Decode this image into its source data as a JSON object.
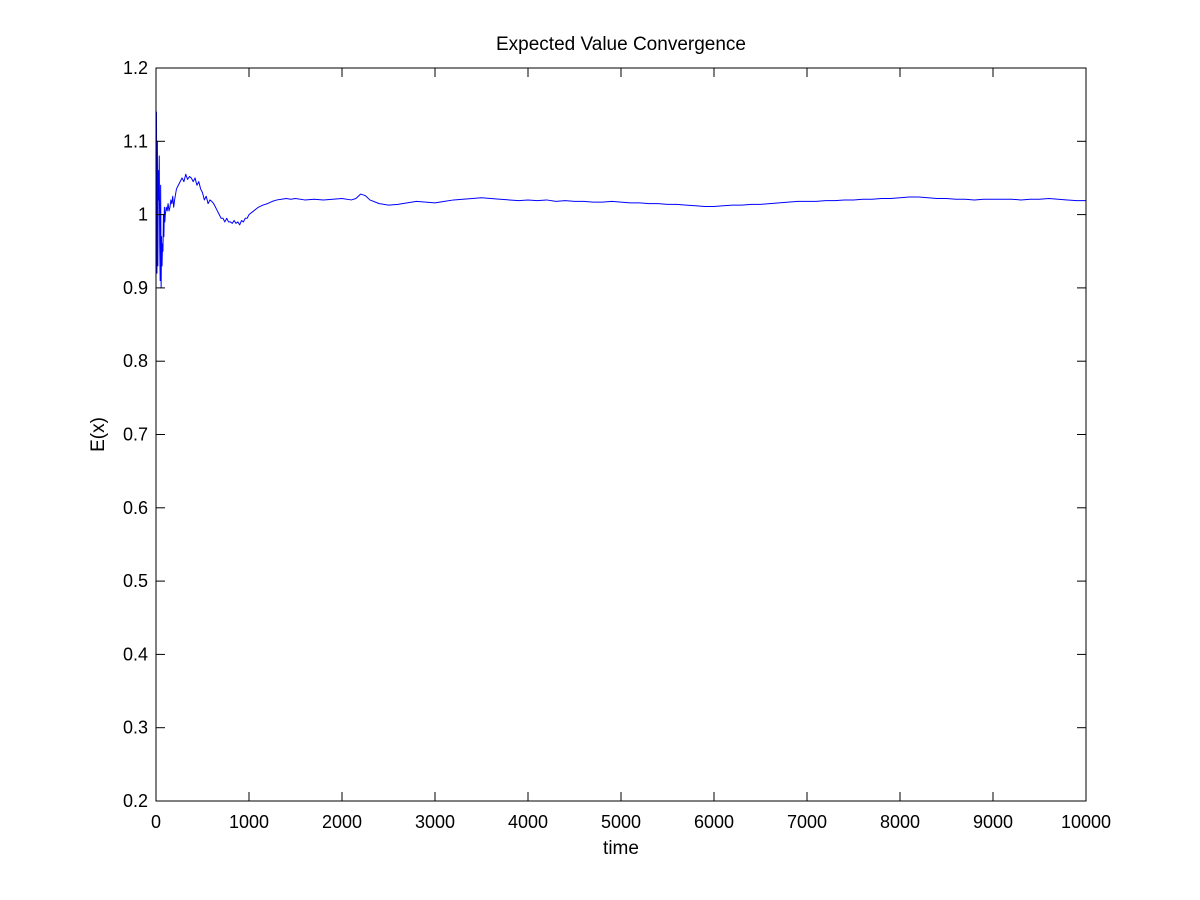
{
  "chart_data": {
    "type": "line",
    "title": "Expected Value Convergence",
    "xlabel": "time",
    "ylabel": "E(x)",
    "xlim": [
      0,
      10000
    ],
    "ylim": [
      0.2,
      1.2
    ],
    "x_ticks": [
      0,
      1000,
      2000,
      3000,
      4000,
      5000,
      6000,
      7000,
      8000,
      9000,
      10000
    ],
    "y_ticks": [
      0.2,
      0.3,
      0.4,
      0.5,
      0.6,
      0.7,
      0.8,
      0.9,
      1,
      1.1,
      1.2
    ],
    "x_tick_labels": [
      "0",
      "1000",
      "2000",
      "3000",
      "4000",
      "5000",
      "6000",
      "7000",
      "8000",
      "9000",
      "10000"
    ],
    "y_tick_labels": [
      "0.2",
      "0.3",
      "0.4",
      "0.5",
      "0.6",
      "0.7",
      "0.8",
      "0.9",
      "1",
      "1.1",
      "1.2"
    ],
    "grid": false,
    "series": [
      {
        "color": "#0000ff",
        "x": [
          1,
          5,
          10,
          15,
          20,
          25,
          30,
          35,
          40,
          45,
          50,
          55,
          60,
          65,
          70,
          75,
          80,
          85,
          90,
          95,
          100,
          110,
          120,
          130,
          140,
          150,
          160,
          170,
          180,
          190,
          200,
          220,
          240,
          260,
          280,
          300,
          320,
          340,
          360,
          380,
          400,
          420,
          440,
          460,
          480,
          500,
          520,
          540,
          560,
          580,
          600,
          620,
          640,
          660,
          680,
          700,
          720,
          740,
          760,
          780,
          800,
          820,
          840,
          860,
          880,
          900,
          920,
          940,
          960,
          980,
          1000,
          1050,
          1100,
          1150,
          1200,
          1250,
          1300,
          1350,
          1400,
          1450,
          1500,
          1600,
          1700,
          1800,
          1900,
          2000,
          2100,
          2150,
          2200,
          2250,
          2300,
          2400,
          2500,
          2600,
          2700,
          2800,
          2900,
          3000,
          3100,
          3200,
          3300,
          3400,
          3500,
          3600,
          3700,
          3800,
          3900,
          4000,
          4100,
          4200,
          4300,
          4400,
          4500,
          4600,
          4700,
          4800,
          4900,
          5000,
          5100,
          5200,
          5300,
          5400,
          5500,
          5600,
          5700,
          5800,
          5900,
          6000,
          6100,
          6200,
          6300,
          6400,
          6500,
          6600,
          6700,
          6800,
          6900,
          7000,
          7100,
          7200,
          7300,
          7400,
          7500,
          7600,
          7700,
          7800,
          7900,
          8000,
          8100,
          8200,
          8300,
          8400,
          8500,
          8600,
          8700,
          8800,
          8900,
          9000,
          9100,
          9200,
          9300,
          9400,
          9500,
          9600,
          9700,
          9800,
          9900,
          10000
        ],
        "y": [
          0.95,
          1.14,
          0.92,
          1.1,
          0.93,
          1.06,
          1.02,
          1.08,
          0.96,
          0.91,
          1.04,
          0.9,
          0.97,
          0.93,
          0.96,
          0.95,
          1.0,
          0.97,
          1.01,
          0.99,
          1.0,
          1.01,
          1.005,
          1.015,
          1.005,
          1.01,
          1.02,
          1.015,
          1.025,
          1.01,
          1.02,
          1.035,
          1.04,
          1.045,
          1.05,
          1.045,
          1.055,
          1.048,
          1.052,
          1.05,
          1.045,
          1.05,
          1.04,
          1.045,
          1.035,
          1.03,
          1.02,
          1.025,
          1.015,
          1.02,
          1.018,
          1.015,
          1.01,
          1.005,
          1.0,
          0.995,
          0.995,
          0.99,
          0.995,
          0.99,
          0.99,
          0.988,
          0.992,
          0.988,
          0.99,
          0.986,
          0.992,
          0.99,
          0.995,
          0.995,
          1.0,
          1.005,
          1.01,
          1.013,
          1.015,
          1.018,
          1.02,
          1.021,
          1.022,
          1.021,
          1.022,
          1.02,
          1.021,
          1.02,
          1.021,
          1.022,
          1.02,
          1.022,
          1.028,
          1.026,
          1.02,
          1.015,
          1.013,
          1.014,
          1.016,
          1.018,
          1.017,
          1.016,
          1.018,
          1.02,
          1.021,
          1.022,
          1.023,
          1.022,
          1.021,
          1.02,
          1.019,
          1.02,
          1.019,
          1.02,
          1.018,
          1.019,
          1.018,
          1.018,
          1.017,
          1.017,
          1.018,
          1.017,
          1.016,
          1.016,
          1.015,
          1.015,
          1.014,
          1.014,
          1.013,
          1.012,
          1.011,
          1.011,
          1.012,
          1.013,
          1.013,
          1.014,
          1.014,
          1.015,
          1.016,
          1.017,
          1.018,
          1.018,
          1.018,
          1.019,
          1.019,
          1.02,
          1.02,
          1.021,
          1.021,
          1.022,
          1.022,
          1.023,
          1.024,
          1.024,
          1.023,
          1.022,
          1.022,
          1.021,
          1.021,
          1.02,
          1.021,
          1.021,
          1.021,
          1.021,
          1.02,
          1.021,
          1.021,
          1.022,
          1.021,
          1.02,
          1.019,
          1.019
        ]
      }
    ]
  }
}
